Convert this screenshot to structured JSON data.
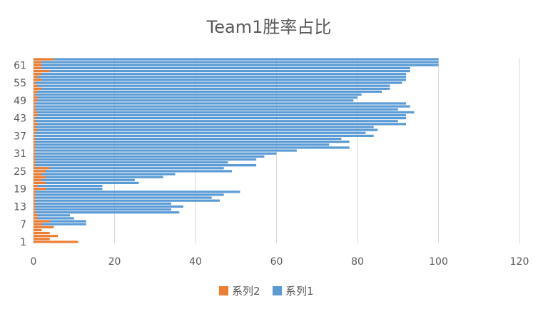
{
  "chart_data": {
    "type": "bar",
    "orientation": "horizontal",
    "stacked": false,
    "title": "Team1胜率占比",
    "xlabel": "",
    "ylabel": "",
    "xlim": [
      0,
      120
    ],
    "x_ticks": [
      "0",
      "20",
      "40",
      "60",
      "80",
      "100",
      "120"
    ],
    "y_tick_labels": [
      "1",
      "7",
      "13",
      "19",
      "25",
      "31",
      "37",
      "43",
      "49",
      "55",
      "61"
    ],
    "categories": [
      1,
      2,
      3,
      4,
      5,
      6,
      7,
      8,
      9,
      10,
      11,
      12,
      13,
      14,
      15,
      16,
      17,
      18,
      19,
      20,
      21,
      22,
      23,
      24,
      25,
      26,
      27,
      28,
      29,
      30,
      31,
      32,
      33,
      34,
      35,
      36,
      37,
      38,
      39,
      40,
      41,
      42,
      43,
      44,
      45,
      46,
      47,
      48,
      49,
      50,
      51,
      52,
      53,
      54,
      55,
      56,
      57,
      58,
      59,
      60,
      61,
      62,
      63
    ],
    "grid": true,
    "legend_position": "bottom",
    "series": [
      {
        "name": "系列1",
        "color": "#5b9bd5",
        "values": [
          0.5,
          0.5,
          0.5,
          1,
          1,
          1,
          13,
          13,
          10,
          9,
          36,
          34,
          37,
          34,
          46,
          44,
          47,
          51,
          17,
          17,
          26,
          25,
          32,
          35,
          49,
          47,
          55,
          48,
          55,
          57,
          60,
          65,
          78,
          73,
          78,
          76,
          84,
          82,
          85,
          84,
          92,
          90,
          92,
          92,
          94,
          90,
          93,
          92,
          79,
          80,
          81,
          86,
          88,
          88,
          91,
          92,
          92,
          92,
          93,
          93,
          100,
          100,
          100
        ]
      },
      {
        "name": "系列2",
        "color": "#ed7d31",
        "values": [
          11,
          4,
          6,
          4,
          2,
          5,
          2,
          4,
          1,
          1,
          0.5,
          0.5,
          0.5,
          0.5,
          0.5,
          0.5,
          0.5,
          0.5,
          3,
          1,
          3,
          2,
          3,
          2,
          3,
          4,
          0.5,
          0.5,
          0.5,
          0.5,
          0.5,
          0.5,
          0.5,
          0.5,
          0.5,
          0.5,
          0.5,
          0.5,
          1,
          0.5,
          1,
          0.5,
          0.5,
          1,
          1,
          0.5,
          0.5,
          0.5,
          1,
          1,
          0.5,
          1,
          2,
          1,
          0.5,
          2,
          1,
          2,
          4,
          2,
          2,
          2,
          5
        ]
      }
    ]
  }
}
